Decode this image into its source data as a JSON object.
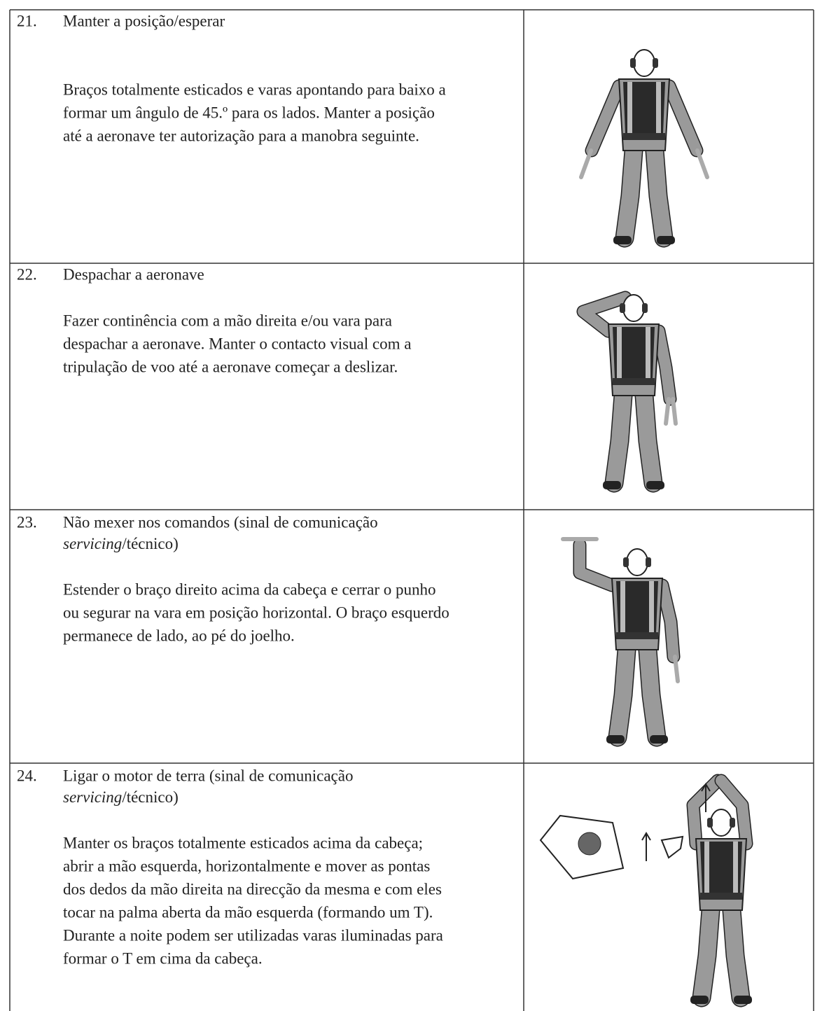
{
  "rows": [
    {
      "number": "21.",
      "title": [
        "Manter a posição/esperar"
      ],
      "description": [
        "Braços totalmente esticados e varas apontando para baixo a",
        "formar um ângulo de 45.º para os lados. Manter a posição",
        "até a aeronave ter autorização para a manobra seguinte."
      ]
    },
    {
      "number": "22.",
      "title": [
        "Despachar a aeronave"
      ],
      "description": [
        "Fazer continência com a mão direita e/ou vara para",
        "despachar a aeronave. Manter o contacto visual com a",
        "tripulação de voo até a aeronave começar a deslizar."
      ]
    },
    {
      "number": "23.",
      "title": [
        "Não mexer nos comandos (sinal de comunicação",
        "servicing",
        "/técnico)"
      ],
      "description": [
        "Estender o braço direito acima da cabeça e cerrar o punho",
        "ou segurar na vara em posição horizontal. O braço esquerdo",
        "permanece de lado, ao pé do joelho."
      ]
    },
    {
      "number": "24.",
      "title": [
        "Ligar o motor de terra (sinal de comunicação",
        "servicing",
        "/técnico)"
      ],
      "description": [
        "Manter os braços totalmente esticados acima da cabeça;",
        "abrir a mão esquerda, horizontalmente e mover as pontas",
        "dos dedos da mão direita na direcção da mesma e com eles",
        "tocar na palma aberta da mão esquerda (formando um T).",
        "Durante a noite podem ser utilizadas varas iluminadas para",
        "formar o T em cima da cabeça."
      ]
    }
  ]
}
